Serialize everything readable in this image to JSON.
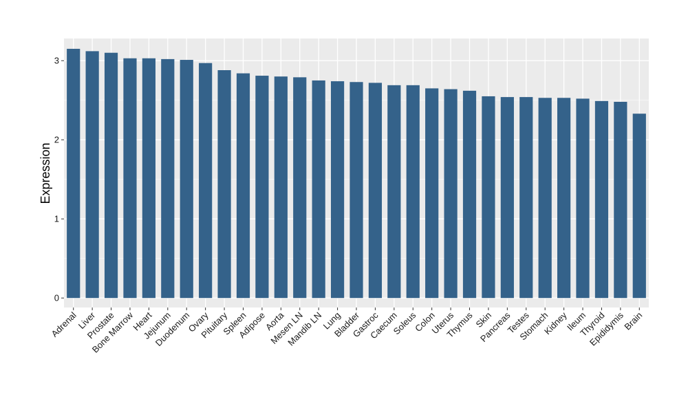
{
  "chart_data": {
    "type": "bar",
    "title": "",
    "xlabel": "",
    "ylabel": "Expression",
    "ylim": [
      -0.12,
      3.28
    ],
    "yticks": [
      0,
      1,
      2,
      3
    ],
    "grid": true,
    "legend": "none",
    "bar_color": "#34628a",
    "panel_background": "#ebebeb",
    "categories": [
      "Adrenal",
      "Liver",
      "Prostate",
      "Bone Marrow",
      "Heart",
      "Jejunum",
      "Duodenum",
      "Ovary",
      "Pituitary",
      "Spleen",
      "Adipose",
      "Aorta",
      "Mesen LN",
      "Mandib LN",
      "Lung",
      "Bladder",
      "Gastroc",
      "Caecum",
      "Soleus",
      "Colon",
      "Uterus",
      "Thymus",
      "Skin",
      "Pancreas",
      "Testes",
      "Stomach",
      "Kidney",
      "Ileum",
      "Thyroid",
      "Epididymis",
      "Brain"
    ],
    "values": [
      3.15,
      3.12,
      3.1,
      3.03,
      3.03,
      3.02,
      3.01,
      2.97,
      2.88,
      2.84,
      2.81,
      2.8,
      2.79,
      2.75,
      2.74,
      2.73,
      2.72,
      2.69,
      2.69,
      2.65,
      2.64,
      2.62,
      2.55,
      2.54,
      2.54,
      2.53,
      2.53,
      2.52,
      2.49,
      2.48,
      2.33
    ]
  }
}
